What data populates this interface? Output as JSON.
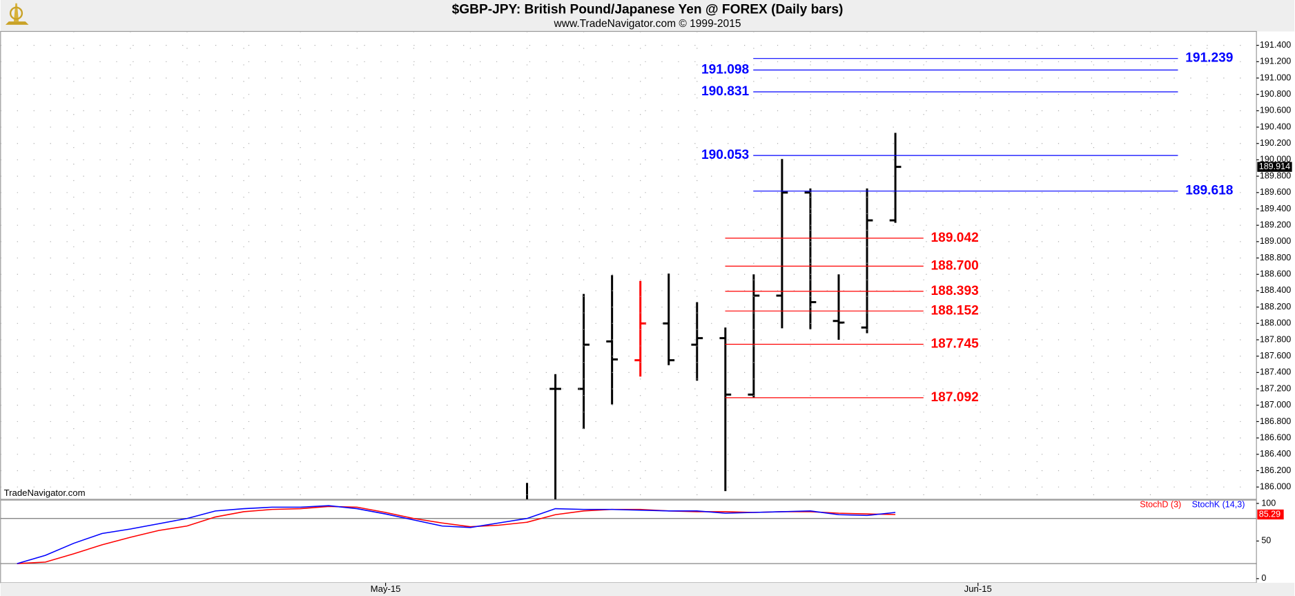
{
  "chart_data": [
    {
      "type": "ohlc",
      "title": "$GBP-JPY:  British Pound/Japanese Yen @ FOREX  (Daily bars)",
      "subtitle": "www.TradeNavigator.com © 1999-2015",
      "watermark": "TradeNavigator.com",
      "open": [
        null,
        null,
        null,
        null,
        null,
        null,
        null,
        null,
        null,
        null,
        null,
        null,
        null,
        null,
        null,
        null,
        null,
        null,
        null,
        187.2,
        187.2,
        187.78,
        187.55,
        188.0,
        187.74,
        187.82,
        187.13,
        188.34,
        189.6,
        188.03,
        187.95,
        189.26
      ],
      "high": [
        null,
        null,
        null,
        null,
        null,
        null,
        null,
        null,
        null,
        null,
        null,
        null,
        null,
        null,
        null,
        null,
        null,
        null,
        186.05,
        187.38,
        188.36,
        188.59,
        188.52,
        188.61,
        188.26,
        187.95,
        188.6,
        190.01,
        189.65,
        188.6,
        189.65,
        190.33
      ],
      "low": [
        null,
        null,
        null,
        null,
        null,
        null,
        null,
        null,
        null,
        null,
        null,
        null,
        null,
        null,
        null,
        null,
        null,
        null,
        185.5,
        185.6,
        186.71,
        187.01,
        187.35,
        187.49,
        187.3,
        185.95,
        187.09,
        187.94,
        187.93,
        187.8,
        187.88,
        189.23
      ],
      "close": [
        null,
        null,
        null,
        null,
        null,
        null,
        null,
        null,
        null,
        null,
        null,
        null,
        null,
        null,
        null,
        null,
        null,
        null,
        null,
        187.2,
        187.74,
        187.56,
        188.0,
        187.55,
        187.82,
        187.13,
        188.34,
        189.6,
        188.26,
        188.01,
        189.26,
        189.914
      ],
      "bar_colors": [
        null,
        null,
        null,
        null,
        null,
        null,
        null,
        null,
        null,
        null,
        null,
        null,
        null,
        null,
        null,
        null,
        null,
        null,
        "#000000",
        "#000000",
        "#000000",
        "#000000",
        "#ff0000",
        "#000000",
        "#000000",
        "#000000",
        "#000000",
        "#000000",
        "#000000",
        "#000000",
        "#000000",
        "#000000"
      ],
      "level_sets": [
        {
          "color": "#0000ff",
          "levels": [
            {
              "value": 191.239,
              "side": "right"
            },
            {
              "value": 191.098,
              "side": "left"
            },
            {
              "value": 190.831,
              "side": "left"
            },
            {
              "value": 190.053,
              "side": "left"
            },
            {
              "value": 189.618,
              "side": "right"
            }
          ]
        },
        {
          "color": "#ff0000",
          "levels": [
            {
              "value": 189.042,
              "side": "right"
            },
            {
              "value": 188.7,
              "label": "188.700",
              "side": "right"
            },
            {
              "value": 188.393,
              "side": "right"
            },
            {
              "value": 188.152,
              "side": "right"
            },
            {
              "value": 187.745,
              "side": "right"
            },
            {
              "value": 187.092,
              "side": "right"
            }
          ]
        }
      ],
      "ylim": [
        185.85,
        191.57
      ],
      "yticks": [
        {
          "value": 186,
          "label": "186.000"
        },
        {
          "value": 186.2,
          "label": "186.200"
        },
        {
          "value": 186.4,
          "label": "186.400"
        },
        {
          "value": 186.6,
          "label": "186.600"
        },
        {
          "value": 186.8,
          "label": "186.800"
        },
        {
          "value": 187,
          "label": "187.000"
        },
        {
          "value": 187.2,
          "label": "187.200"
        },
        {
          "value": 187.4,
          "label": "187.400"
        },
        {
          "value": 187.6,
          "label": "187.600"
        },
        {
          "value": 187.8,
          "label": "187.800"
        },
        {
          "value": 188,
          "label": "188.000"
        },
        {
          "value": 188.2,
          "label": "188.200"
        },
        {
          "value": 188.4,
          "label": "188.400"
        },
        {
          "value": 188.6,
          "label": "188.600"
        },
        {
          "value": 188.8,
          "label": "188.800"
        },
        {
          "value": 189,
          "label": "189.000"
        },
        {
          "value": 189.2,
          "label": "189.200"
        },
        {
          "value": 189.4,
          "label": "189.400"
        },
        {
          "value": 189.6,
          "label": "189.600"
        },
        {
          "value": 189.8,
          "label": "189.800"
        },
        {
          "value": 190,
          "label": "190.000"
        },
        {
          "value": 190.2,
          "label": "190.200"
        },
        {
          "value": 190.4,
          "label": "190.400"
        },
        {
          "value": 190.6,
          "label": "190.600"
        },
        {
          "value": 190.8,
          "label": "190.800"
        },
        {
          "value": 191,
          "label": "191.000"
        },
        {
          "value": 191.2,
          "label": "191.200"
        },
        {
          "value": 191.4,
          "label": "191.400"
        }
      ],
      "grid": true
    },
    {
      "type": "line",
      "series": [
        {
          "name": "StochD (3)",
          "color": "#ff0000",
          "values": [
            20,
            22,
            33,
            45,
            55,
            64,
            70,
            82,
            89,
            92,
            93,
            96,
            95,
            88,
            80,
            74,
            69,
            71,
            75,
            85,
            90,
            92,
            92,
            90,
            89,
            89,
            88,
            89,
            89,
            87,
            86,
            85.29
          ]
        },
        {
          "name": "StochK (14,3)",
          "color": "#0000ff",
          "values": [
            20,
            31,
            47,
            60,
            66,
            73,
            80,
            90,
            93,
            95,
            95,
            97,
            93,
            86,
            78,
            70,
            68,
            74,
            80,
            93,
            92,
            92,
            91,
            90,
            90,
            87,
            88,
            89,
            90,
            85,
            84,
            88
          ]
        }
      ],
      "ylim": [
        -4.4,
        103.3
      ],
      "yticks": [
        0,
        50,
        100
      ],
      "reference_lines": [
        20,
        80
      ],
      "x_labels": [
        "May-15",
        "Jun-15"
      ]
    }
  ]
}
